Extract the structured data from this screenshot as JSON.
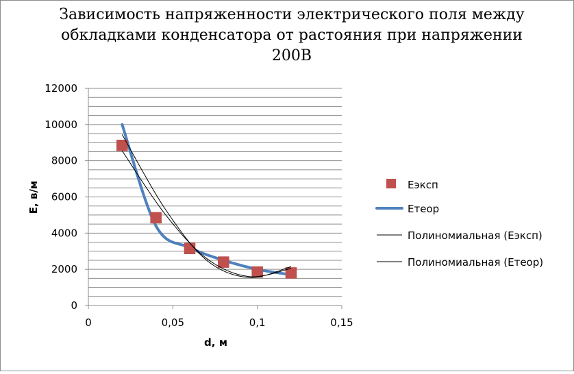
{
  "chart_data": {
    "type": "scatter",
    "title": "Зависимость напряженности электрического поля между обкладками конденсатора от растояния при напряжении 200В",
    "title_lines": [
      "Зависимость напряженности электрического поля между",
      "обкладками конденсатора от растояния при напряжении",
      "200В"
    ],
    "xlabel": "d, м",
    "ylabel": "E, в/м",
    "xlim": [
      0,
      0.15
    ],
    "ylim": [
      0,
      12000
    ],
    "x_ticks": [
      "0",
      "0,05",
      "0,1",
      "0,15"
    ],
    "y_ticks": [
      "0",
      "2000",
      "4000",
      "6000",
      "8000",
      "10000",
      "12000"
    ],
    "grid": "horizontal minor",
    "legend_position": "right",
    "series": [
      {
        "name": "Еэксп",
        "kind": "markers",
        "color": "#c0504d",
        "x": [
          0.02,
          0.04,
          0.06,
          0.08,
          0.1,
          0.12
        ],
        "y": [
          8850,
          4850,
          3150,
          2400,
          1850,
          1800
        ]
      },
      {
        "name": "Етеор",
        "kind": "smooth-line",
        "color": "#4f81bd",
        "x": [
          0.02,
          0.04,
          0.06,
          0.08,
          0.1,
          0.12
        ],
        "y": [
          10000,
          4400,
          3200,
          2500,
          2000,
          1700
        ]
      },
      {
        "name": "Полиномиальная (Еэксп)",
        "kind": "trendline",
        "color": "#000000",
        "fit_x": [
          0.02,
          0.045,
          0.07,
          0.095,
          0.12
        ],
        "fit_y": [
          8550,
          5100,
          2600,
          1600,
          2050
        ]
      },
      {
        "name": "Полиномиальная (Етеор)",
        "kind": "trendline",
        "color": "#000000",
        "fit_x": [
          0.02,
          0.045,
          0.07,
          0.095,
          0.12
        ],
        "fit_y": [
          9450,
          5400,
          2500,
          1550,
          2150
        ]
      }
    ]
  }
}
